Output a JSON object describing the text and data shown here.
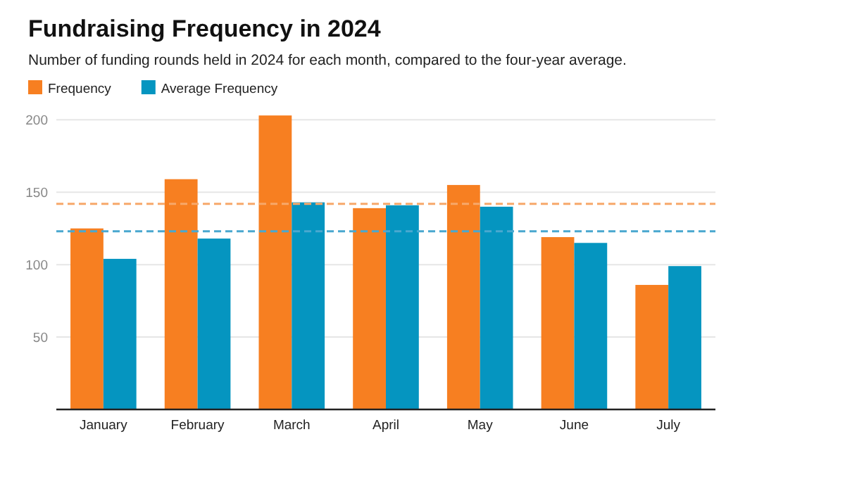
{
  "chart_data": {
    "type": "bar",
    "title": "Fundraising Frequency in 2024",
    "subtitle": "Number of funding rounds held in 2024 for each month, compared to the four-year average.",
    "categories": [
      "January",
      "February",
      "March",
      "April",
      "May",
      "June",
      "July"
    ],
    "series": [
      {
        "name": "Frequency",
        "color": "#f77f21",
        "values": [
          125,
          159,
          203,
          139,
          155,
          119,
          86
        ]
      },
      {
        "name": "Average Frequency",
        "color": "#0595c0",
        "values": [
          104,
          118,
          143,
          141,
          140,
          115,
          99
        ]
      }
    ],
    "ylim": [
      0,
      205
    ],
    "yticks": [
      50,
      100,
      150,
      200
    ],
    "grid": "y",
    "legend": "top left",
    "ref_lines": [
      {
        "axis": "y",
        "value": 142,
        "color": "#f7a86a",
        "line_style": "dashed"
      },
      {
        "axis": "y",
        "value": 123,
        "color": "#4aa8cf",
        "line_style": "dashed"
      }
    ]
  }
}
